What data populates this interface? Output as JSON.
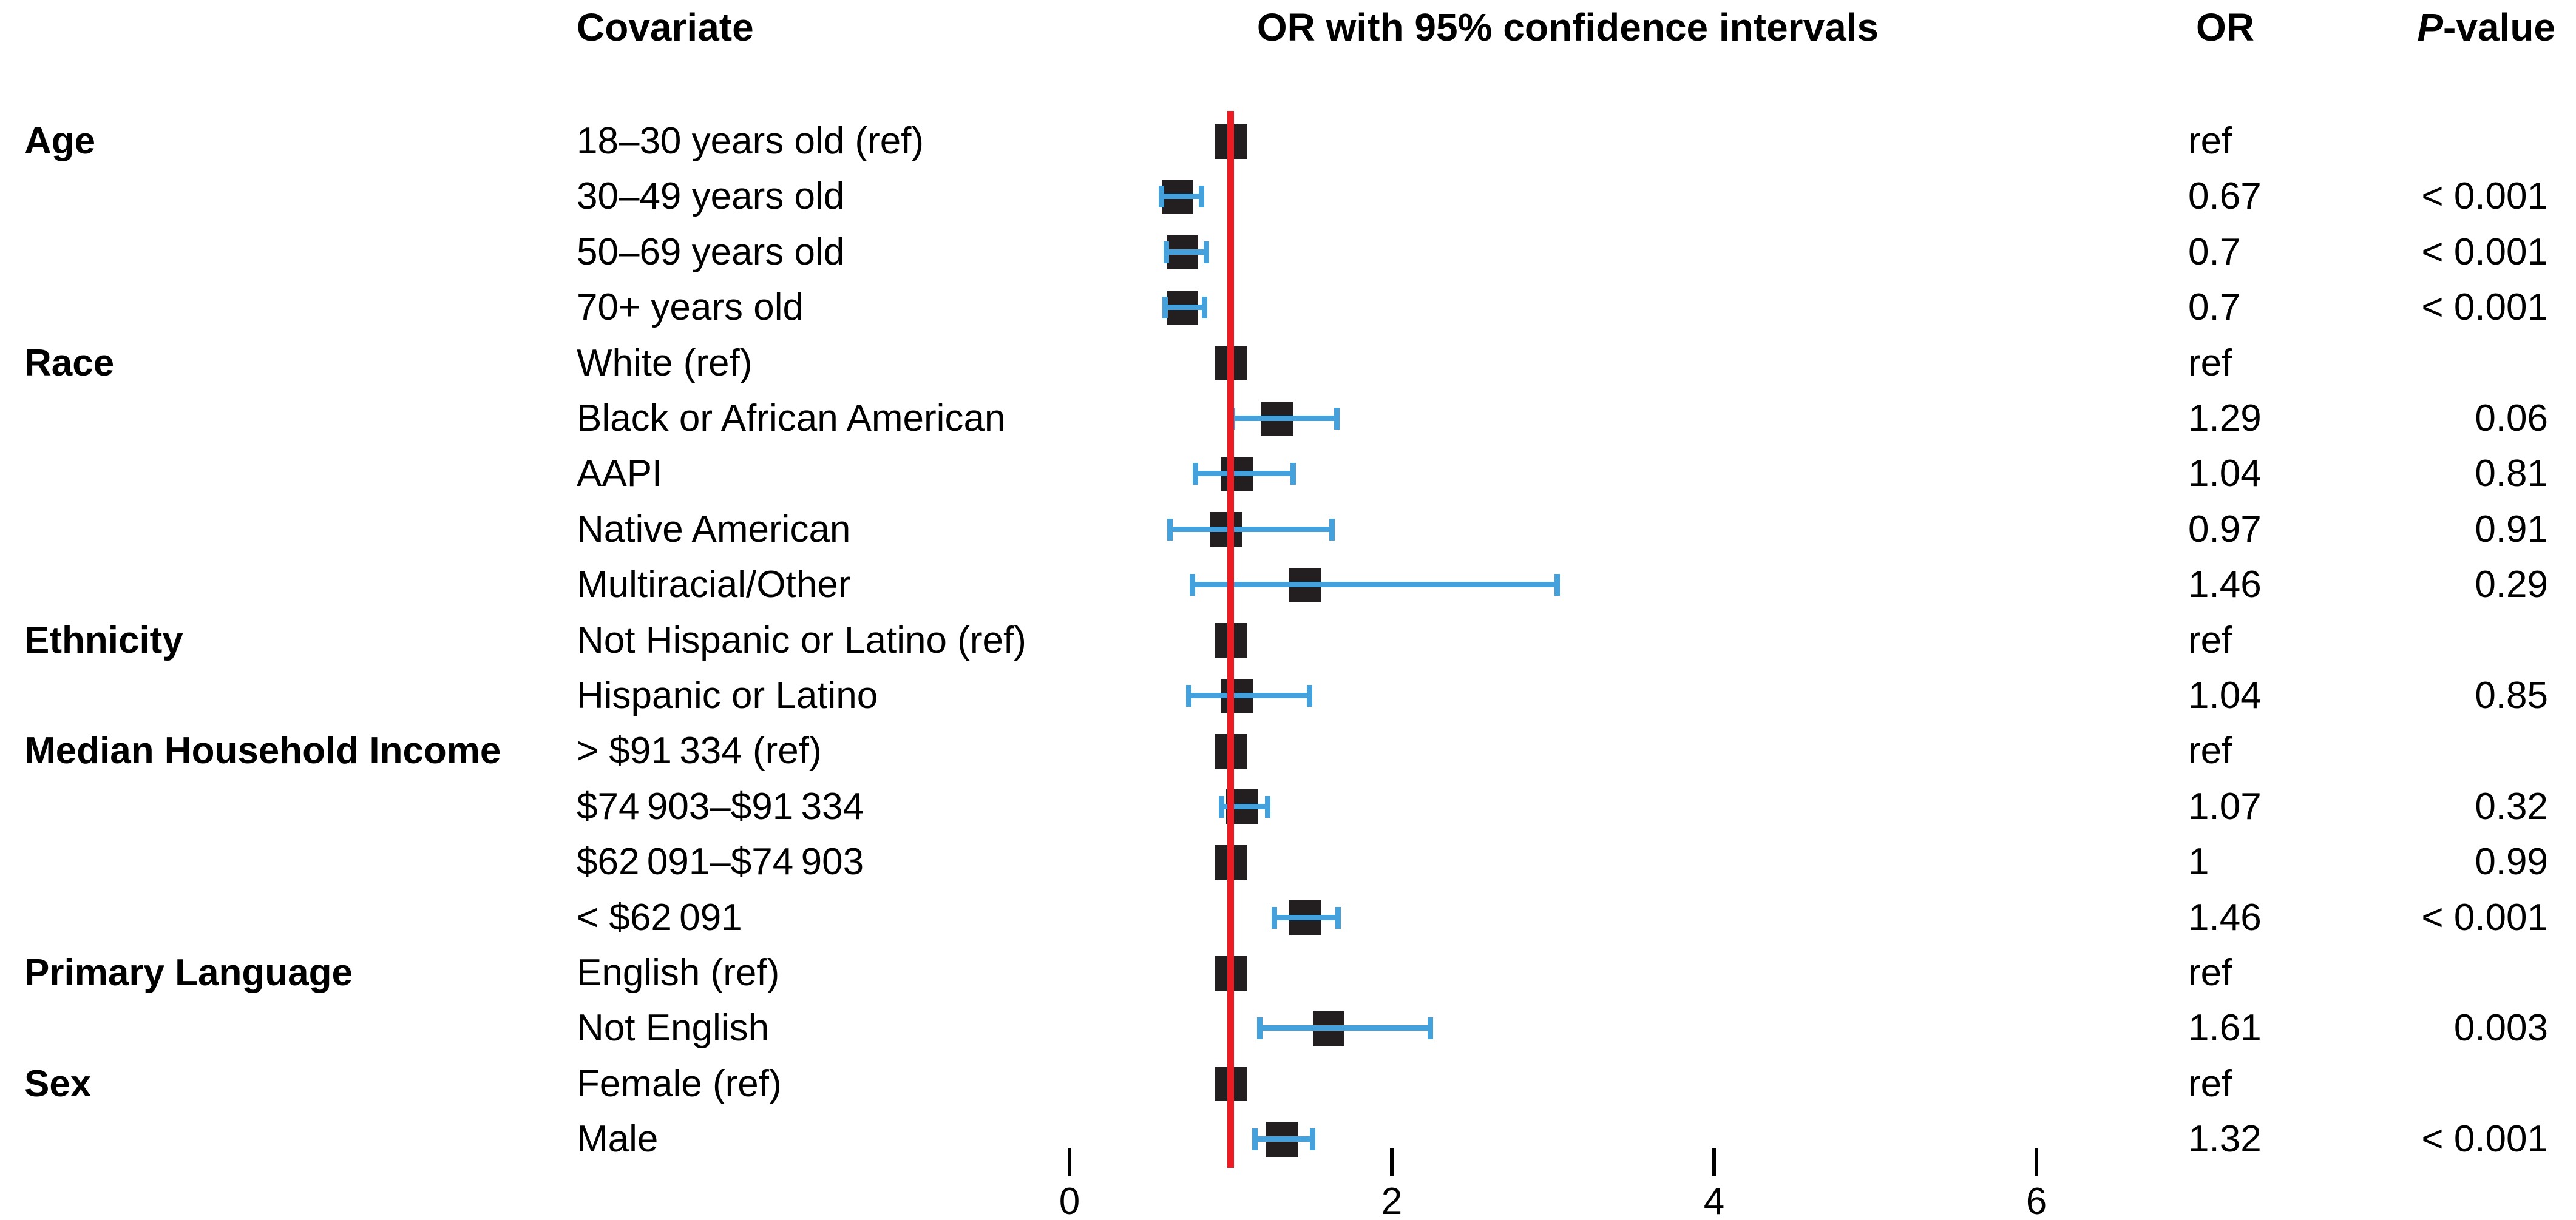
{
  "headers": {
    "covariate": "Covariate",
    "plot": "OR with 95% confidence intervals",
    "or": "OR",
    "p_italic": "P",
    "p_rest": "-value"
  },
  "colors": {
    "marker": "#231f20",
    "whisker": "#45a1dc",
    "ref_line": "#ec1c24"
  },
  "chart_data": {
    "type": "forest",
    "x_ticks": [
      0,
      2,
      4,
      6
    ],
    "x_range": [
      0,
      6.6
    ],
    "ref_line_x": 1,
    "grid": false,
    "rows": [
      {
        "group": "Age",
        "label": "18–30 years old (ref)",
        "or": 1.0,
        "ci": null,
        "or_text": "ref",
        "p_text": ""
      },
      {
        "group": "",
        "label": "30–49 years old",
        "or": 0.67,
        "ci": [
          0.57,
          0.82
        ],
        "or_text": "0.67",
        "p_text": "< 0.001"
      },
      {
        "group": "",
        "label": "50–69 years old",
        "or": 0.7,
        "ci": [
          0.6,
          0.85
        ],
        "or_text": "0.7",
        "p_text": "< 0.001"
      },
      {
        "group": "",
        "label": "70+ years old",
        "or": 0.7,
        "ci": [
          0.59,
          0.84
        ],
        "or_text": "0.7",
        "p_text": "< 0.001"
      },
      {
        "group": "Race",
        "label": "White (ref)",
        "or": 1.0,
        "ci": null,
        "or_text": "ref",
        "p_text": ""
      },
      {
        "group": "",
        "label": "Black or African American",
        "or": 1.29,
        "ci": [
          1.01,
          1.66
        ],
        "or_text": "1.29",
        "p_text": "0.06"
      },
      {
        "group": "",
        "label": "AAPI",
        "or": 1.04,
        "ci": [
          0.78,
          1.39
        ],
        "or_text": "1.04",
        "p_text": "0.81"
      },
      {
        "group": "",
        "label": "Native American",
        "or": 0.97,
        "ci": [
          0.62,
          1.63
        ],
        "or_text": "0.97",
        "p_text": "0.91"
      },
      {
        "group": "",
        "label": "Multiracial/Other",
        "or": 1.46,
        "ci": [
          0.76,
          3.03
        ],
        "or_text": "1.46",
        "p_text": "0.29"
      },
      {
        "group": "Ethnicity",
        "label": "Not Hispanic or Latino (ref)",
        "or": 1.0,
        "ci": null,
        "or_text": "ref",
        "p_text": ""
      },
      {
        "group": "",
        "label": "Hispanic or Latino",
        "or": 1.04,
        "ci": [
          0.74,
          1.49
        ],
        "or_text": "1.04",
        "p_text": "0.85"
      },
      {
        "group": "Median Household Income",
        "label": "> $91 334 (ref)",
        "or": 1.0,
        "ci": null,
        "or_text": "ref",
        "p_text": ""
      },
      {
        "group": "",
        "label": "$74 903–$91 334",
        "or": 1.07,
        "ci": [
          0.94,
          1.23
        ],
        "or_text": "1.07",
        "p_text": "0.32"
      },
      {
        "group": "",
        "label": "$62 091–$74 903",
        "or": 1.0,
        "ci": null,
        "or_text": "1",
        "p_text": "0.99"
      },
      {
        "group": "",
        "label": "< $62 091",
        "or": 1.46,
        "ci": [
          1.27,
          1.67
        ],
        "or_text": "1.46",
        "p_text": "< 0.001"
      },
      {
        "group": "Primary Language",
        "label": "English (ref)",
        "or": 1.0,
        "ci": null,
        "or_text": "ref",
        "p_text": ""
      },
      {
        "group": "",
        "label": "Not English",
        "or": 1.61,
        "ci": [
          1.18,
          2.24
        ],
        "or_text": "1.61",
        "p_text": "0.003"
      },
      {
        "group": "Sex",
        "label": "Female (ref)",
        "or": 1.0,
        "ci": null,
        "or_text": "ref",
        "p_text": ""
      },
      {
        "group": "",
        "label": "Male",
        "or": 1.32,
        "ci": [
          1.15,
          1.51
        ],
        "or_text": "1.32",
        "p_text": "< 0.001"
      }
    ]
  }
}
